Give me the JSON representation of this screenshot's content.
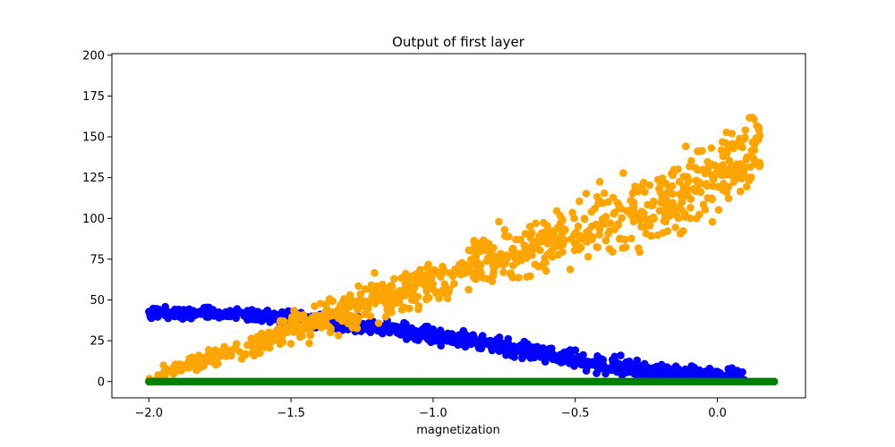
{
  "chart_data": {
    "type": "scatter",
    "title": "Output of first layer",
    "xlabel": "magnetization",
    "ylabel": "",
    "xlim": [
      -2.13,
      0.31
    ],
    "ylim": [
      -10,
      201
    ],
    "x_ticks": [
      -2.0,
      -1.5,
      -1.0,
      -0.5,
      0.0
    ],
    "x_tick_labels": [
      "−2.0",
      "−1.5",
      "−1.0",
      "−0.5",
      "0.0"
    ],
    "y_ticks": [
      0,
      25,
      50,
      75,
      100,
      125,
      150,
      175,
      200
    ],
    "y_tick_labels": [
      "0",
      "25",
      "50",
      "75",
      "100",
      "125",
      "150",
      "175",
      "200"
    ],
    "grid": false,
    "legend": "none",
    "series": [
      {
        "color": "#0000ff",
        "trend_x": [
          -2.0,
          -1.8,
          -1.6,
          -1.4,
          -1.2,
          -1.0,
          -0.8,
          -0.6,
          -0.4,
          -0.2,
          0.0,
          0.1
        ],
        "trend_y": [
          42,
          42,
          40,
          37,
          33,
          28,
          23,
          17,
          11,
          6,
          2,
          0.5
        ]
      },
      {
        "color": "#ffa500",
        "trend_x": [
          -2.0,
          -1.8,
          -1.6,
          -1.4,
          -1.2,
          -1.0,
          -0.8,
          -0.6,
          -0.4,
          -0.2,
          0.0,
          0.15
        ],
        "trend_y": [
          2,
          13,
          25,
          38,
          50,
          62,
          74,
          85,
          96,
          108,
          128,
          145
        ]
      },
      {
        "color": "#008000",
        "trend_x": [
          -2.0,
          0.2
        ],
        "trend_y": [
          0,
          0
        ]
      }
    ]
  }
}
